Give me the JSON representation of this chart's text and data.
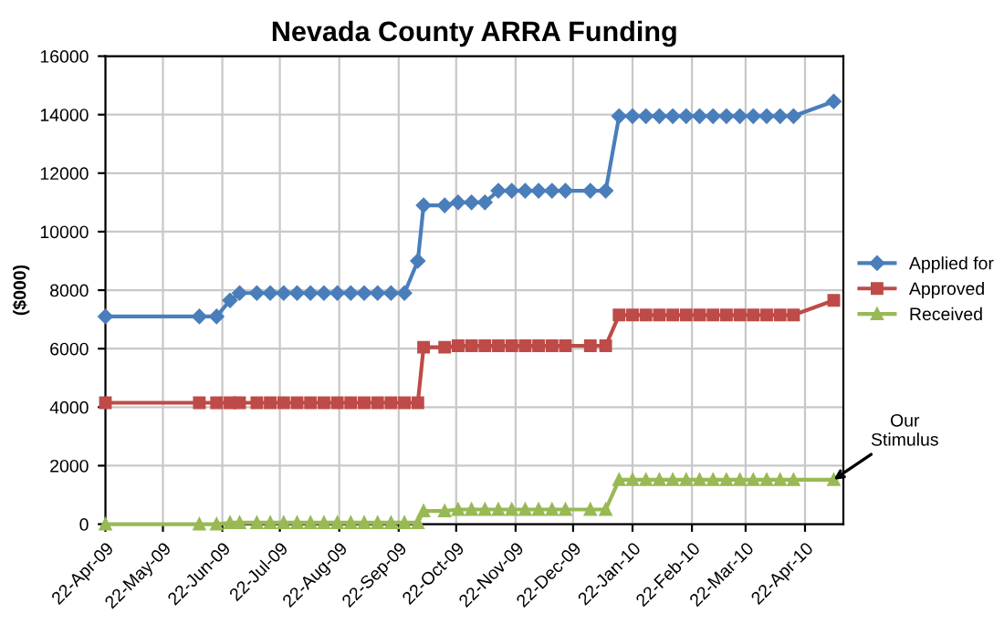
{
  "chart_data": {
    "type": "line",
    "title": "Nevada County ARRA Funding",
    "ylabel": "($000)",
    "x": [
      "2009-04-22",
      "2009-06-10",
      "2009-06-19",
      "2009-06-26",
      "2009-07-01",
      "2009-07-10",
      "2009-07-17",
      "2009-07-24",
      "2009-07-31",
      "2009-08-07",
      "2009-08-14",
      "2009-08-21",
      "2009-08-28",
      "2009-09-04",
      "2009-09-11",
      "2009-09-18",
      "2009-09-25",
      "2009-10-02",
      "2009-10-05",
      "2009-10-16",
      "2009-10-23",
      "2009-10-30",
      "2009-11-06",
      "2009-11-13",
      "2009-11-20",
      "2009-11-27",
      "2009-12-04",
      "2009-12-11",
      "2009-12-18",
      "2009-12-31",
      "2010-01-08",
      "2010-01-15",
      "2010-01-22",
      "2010-01-29",
      "2010-02-05",
      "2010-02-12",
      "2010-02-19",
      "2010-02-26",
      "2010-03-05",
      "2010-03-12",
      "2010-03-19",
      "2010-03-26",
      "2010-04-02",
      "2010-04-09",
      "2010-04-16",
      "2010-05-07"
    ],
    "series": [
      {
        "name": "Applied for",
        "color": "#4a7ebb",
        "marker": "diamond",
        "values": [
          7100,
          7100,
          7100,
          7650,
          7900,
          7900,
          7900,
          7900,
          7900,
          7900,
          7900,
          7900,
          7900,
          7900,
          7900,
          7900,
          7900,
          9000,
          10900,
          10900,
          11000,
          11000,
          11000,
          11400,
          11400,
          11400,
          11400,
          11400,
          11400,
          11400,
          11400,
          13950,
          13950,
          13950,
          13950,
          13950,
          13950,
          13950,
          13950,
          13950,
          13950,
          13950,
          13950,
          13950,
          13950,
          14450
        ]
      },
      {
        "name": "Approved",
        "color": "#be4b48",
        "marker": "square",
        "values": [
          4150,
          4150,
          4150,
          4150,
          4150,
          4150,
          4150,
          4150,
          4150,
          4150,
          4150,
          4150,
          4150,
          4150,
          4150,
          4150,
          4150,
          4150,
          6050,
          6050,
          6100,
          6100,
          6100,
          6100,
          6100,
          6100,
          6100,
          6100,
          6100,
          6100,
          6100,
          7150,
          7150,
          7150,
          7150,
          7150,
          7150,
          7150,
          7150,
          7150,
          7150,
          7150,
          7150,
          7150,
          7150,
          7650
        ]
      },
      {
        "name": "Received",
        "color": "#98b954",
        "marker": "triangle",
        "values": [
          0,
          0,
          0,
          50,
          50,
          50,
          50,
          50,
          50,
          50,
          50,
          50,
          50,
          50,
          50,
          50,
          50,
          50,
          450,
          450,
          500,
          500,
          500,
          500,
          500,
          500,
          500,
          500,
          500,
          500,
          500,
          1520,
          1520,
          1520,
          1520,
          1520,
          1520,
          1520,
          1520,
          1520,
          1520,
          1520,
          1520,
          1520,
          1520,
          1520
        ]
      }
    ],
    "xlim": [
      "2009-04-22",
      "2010-05-12"
    ],
    "xticks": [
      {
        "value": "2009-04-22",
        "label": "22-Apr-09"
      },
      {
        "value": "2009-05-22",
        "label": "22-May-09"
      },
      {
        "value": "2009-06-22",
        "label": "22-Jun-09"
      },
      {
        "value": "2009-07-22",
        "label": "22-Jul-09"
      },
      {
        "value": "2009-08-22",
        "label": "22-Aug-09"
      },
      {
        "value": "2009-09-22",
        "label": "22-Sep-09"
      },
      {
        "value": "2009-10-22",
        "label": "22-Oct-09"
      },
      {
        "value": "2009-11-22",
        "label": "22-Nov-09"
      },
      {
        "value": "2009-12-22",
        "label": "22-Dec-09"
      },
      {
        "value": "2010-01-22",
        "label": "22-Jan-10"
      },
      {
        "value": "2010-02-22",
        "label": "22-Feb-10"
      },
      {
        "value": "2010-03-22",
        "label": "22-Mar-10"
      },
      {
        "value": "2010-04-22",
        "label": "22-Apr-10"
      }
    ],
    "ylim": [
      0,
      16000
    ],
    "yticks": [
      0,
      2000,
      4000,
      6000,
      8000,
      10000,
      12000,
      14000,
      16000
    ],
    "grid": true,
    "legend": "right",
    "line_style": "solid",
    "annotations": [
      {
        "text": "Our\nStimulus",
        "x": "2010-05-07",
        "y": 1520
      }
    ]
  }
}
